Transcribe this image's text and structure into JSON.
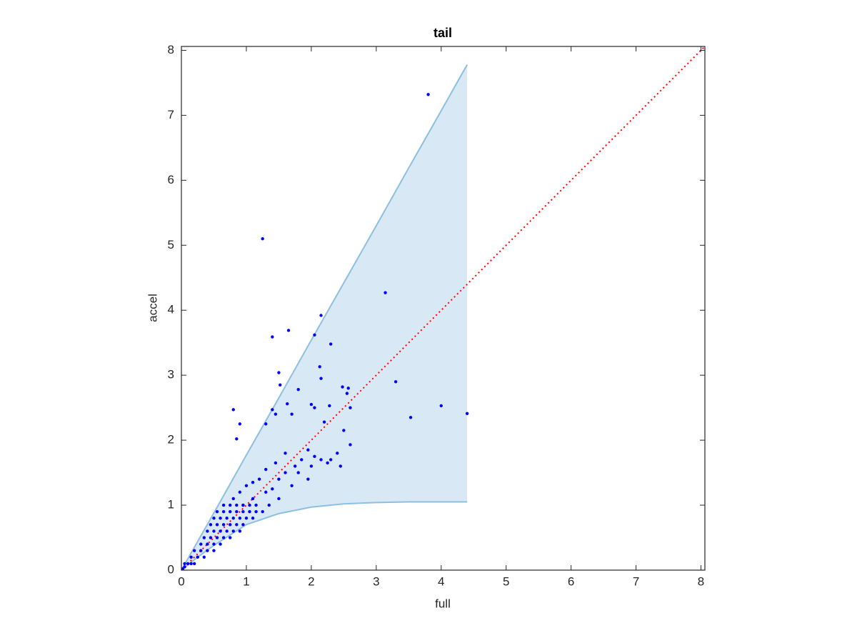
{
  "chart_data": {
    "type": "scatter",
    "title": "tail",
    "xlabel": "full",
    "ylabel": "accel",
    "xlim": [
      0,
      8.06
    ],
    "ylim": [
      0,
      8.06
    ],
    "xticks": [
      0,
      1,
      2,
      3,
      4,
      5,
      6,
      7,
      8
    ],
    "yticks": [
      0,
      1,
      2,
      3,
      4,
      5,
      6,
      7,
      8
    ],
    "band": {
      "x": [
        0,
        0.25,
        0.5,
        1,
        1.5,
        2,
        2.5,
        3,
        3.5,
        4,
        4.4
      ],
      "upper": [
        0,
        0.44,
        0.88,
        1.77,
        2.65,
        3.54,
        4.42,
        5.3,
        6.19,
        7.07,
        7.78
      ],
      "lower": [
        0,
        0.2,
        0.38,
        0.7,
        0.87,
        0.97,
        1.02,
        1.04,
        1.05,
        1.05,
        1.05
      ],
      "color": "#d9e8f5",
      "edge_color": "#8cc0e0"
    },
    "diagonal": {
      "x": [
        0,
        8.06
      ],
      "values": [
        0,
        8.06
      ],
      "color": "#ff0000"
    },
    "series": [
      {
        "color": "#0000ff",
        "x": [
          3.8,
          1.25,
          3.14,
          2.15,
          1.65,
          1.4,
          2.05,
          2.3,
          1.5,
          2.13,
          3.3,
          2.15,
          1.52,
          2.48,
          2.57,
          1.8,
          2.55,
          1.63,
          2.0,
          2.28,
          2.05,
          2.6,
          4.0,
          4.4,
          3.53,
          1.4,
          0.8,
          1.7,
          1.45,
          0.9,
          1.3,
          2.2,
          2.5,
          0.85,
          2.6,
          2.4,
          2.25,
          2.05,
          1.95,
          1.85,
          1.75,
          1.6,
          1.45,
          1.3,
          1.2,
          1.1,
          1.0,
          0.9,
          0.8,
          1.5,
          1.6,
          1.4,
          1.3,
          1.7,
          1.5,
          1.8,
          2.0,
          2.15,
          1.95,
          2.45,
          2.3,
          1.35,
          1.1,
          0.95,
          0.65,
          0.75,
          0.85,
          0.95,
          1.05,
          1.15,
          0.55,
          0.65,
          0.75,
          0.85,
          0.95,
          1.05,
          1.15,
          1.25,
          0.5,
          0.6,
          0.7,
          0.8,
          0.9,
          1.0,
          1.1,
          0.45,
          0.55,
          0.65,
          0.75,
          0.85,
          0.95,
          0.4,
          0.5,
          0.6,
          0.7,
          0.8,
          0.9,
          0.35,
          0.45,
          0.55,
          0.65,
          0.75,
          0.3,
          0.4,
          0.5,
          0.6,
          0.2,
          0.3,
          0.4,
          0.5,
          0.15,
          0.25,
          0.35,
          0.05,
          0.1,
          0.15,
          0.2,
          0.02,
          0.05
        ],
        "values": [
          7.32,
          5.1,
          4.27,
          3.92,
          3.69,
          3.59,
          3.62,
          3.48,
          3.04,
          3.13,
          2.9,
          2.95,
          2.85,
          2.82,
          2.8,
          2.78,
          2.72,
          2.56,
          2.55,
          2.53,
          2.5,
          2.5,
          2.53,
          2.41,
          2.35,
          2.47,
          2.47,
          2.4,
          2.4,
          2.25,
          2.25,
          2.28,
          2.15,
          2.02,
          1.93,
          1.8,
          1.65,
          1.75,
          1.85,
          1.7,
          1.6,
          1.8,
          1.65,
          1.55,
          1.4,
          1.35,
          1.3,
          1.2,
          1.1,
          1.4,
          1.5,
          1.25,
          1.2,
          1.3,
          1.1,
          1.5,
          1.6,
          1.7,
          1.4,
          1.6,
          1.7,
          1.0,
          1.1,
          1.0,
          1.0,
          1.0,
          1.0,
          1.0,
          1.0,
          1.0,
          0.9,
          0.9,
          0.9,
          0.9,
          0.9,
          0.9,
          0.9,
          0.9,
          0.8,
          0.8,
          0.8,
          0.8,
          0.8,
          0.8,
          0.8,
          0.7,
          0.7,
          0.7,
          0.7,
          0.7,
          0.7,
          0.6,
          0.6,
          0.6,
          0.6,
          0.6,
          0.6,
          0.5,
          0.5,
          0.5,
          0.5,
          0.5,
          0.4,
          0.4,
          0.4,
          0.4,
          0.3,
          0.3,
          0.3,
          0.3,
          0.2,
          0.2,
          0.2,
          0.1,
          0.1,
          0.1,
          0.1,
          0.02,
          0.05
        ]
      }
    ]
  }
}
